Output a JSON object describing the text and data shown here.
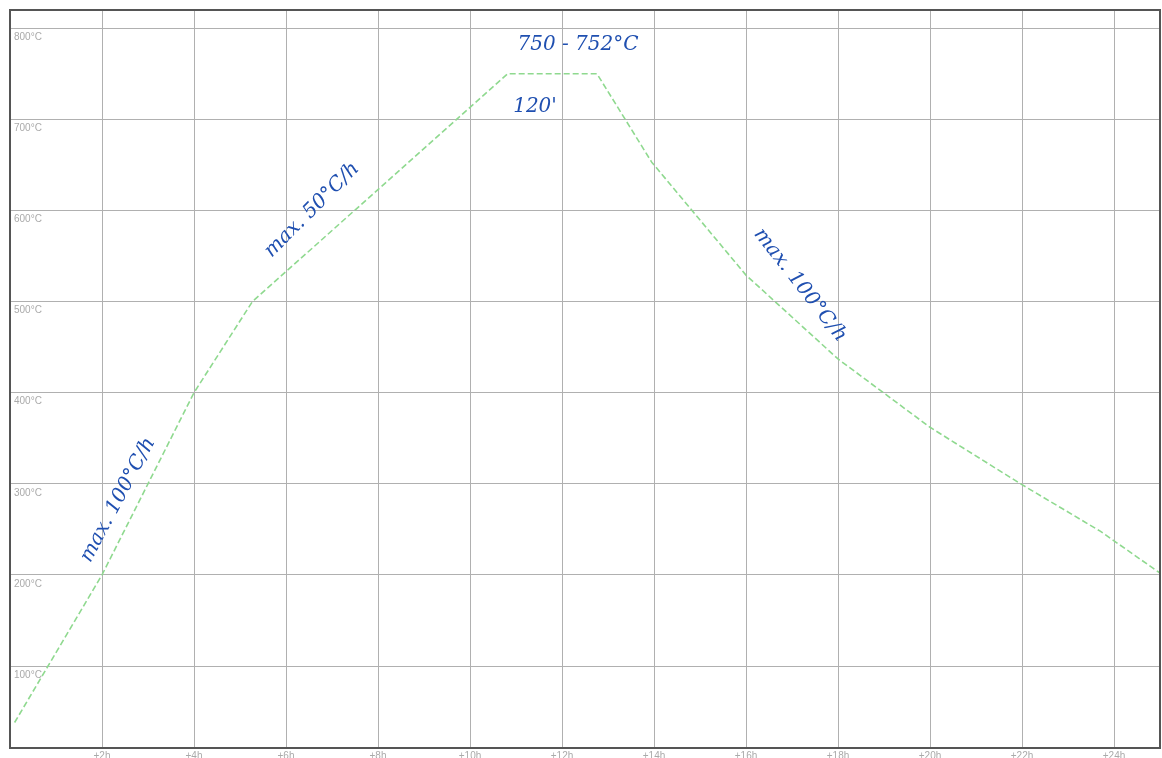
{
  "chart_data": {
    "type": "line",
    "x": [
      0.1,
      2,
      4,
      5.27,
      10.82,
      12.76,
      13.95,
      16,
      18,
      20,
      22,
      23.7,
      25
    ],
    "series": [
      {
        "color": "#8fd98f",
        "values": [
          38,
          200,
          400,
          500,
          750,
          750,
          653,
          529,
          437,
          362,
          299,
          248,
          202
        ]
      }
    ],
    "xlim": [
      0,
      25
    ],
    "xticks": [
      {
        "value": 2,
        "label": "+2h"
      },
      {
        "value": 4,
        "label": "+4h"
      },
      {
        "value": 6,
        "label": "+6h"
      },
      {
        "value": 8,
        "label": "+8h"
      },
      {
        "value": 10,
        "label": "+10h"
      },
      {
        "value": 12,
        "label": "+12h"
      },
      {
        "value": 14,
        "label": "+14h"
      },
      {
        "value": 16,
        "label": "+16h"
      },
      {
        "value": 18,
        "label": "+18h"
      },
      {
        "value": 20,
        "label": "+20h"
      },
      {
        "value": 22,
        "label": "+22h"
      },
      {
        "value": 24,
        "label": "+24h"
      }
    ],
    "ylim": [
      10,
      820
    ],
    "yticks": [
      {
        "value": 100,
        "label": "100°C"
      },
      {
        "value": 200,
        "label": "200°C"
      },
      {
        "value": 300,
        "label": "300°C"
      },
      {
        "value": 400,
        "label": "400°C"
      },
      {
        "value": 500,
        "label": "500°C"
      },
      {
        "value": 600,
        "label": "600°C"
      },
      {
        "value": 700,
        "label": "700°C"
      },
      {
        "value": 800,
        "label": "800°C"
      }
    ],
    "grid": true,
    "marker": "none",
    "line_style": "dashed",
    "legend": false,
    "annotations": [
      "max. 100°C/h",
      "max. 50°C/h",
      "750 - 752°C",
      "120'",
      "max. 100°C/h"
    ]
  }
}
